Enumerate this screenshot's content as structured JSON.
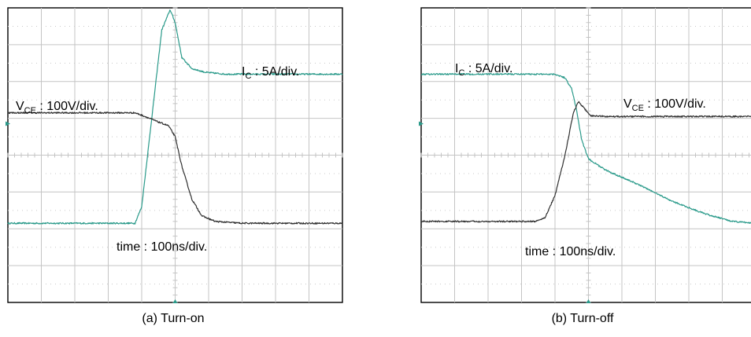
{
  "colors": {
    "ic_trace": "#2a9a8a",
    "vce_trace": "#303030",
    "grid_major": "#c4c4c4",
    "grid_minor": "#c8c8c8",
    "frame": "#000000"
  },
  "chart_data": [
    {
      "type": "line",
      "title": "(a) Turn-on",
      "grid": {
        "divisions_x": 10,
        "divisions_y": 8,
        "minor_per_div": 5
      },
      "x": {
        "range_div": [
          0,
          10
        ]
      },
      "y": {
        "range_div": [
          0,
          8
        ]
      },
      "annotations": {
        "ic": {
          "main": "I",
          "sub": "C",
          "rest": " : 5A/div."
        },
        "vce": {
          "main": "V",
          "sub": "CE",
          "rest": " : 100V/div."
        },
        "time": "time : 100ns/div."
      },
      "series": [
        {
          "key": "ic",
          "color_key": "ic_trace",
          "noise": 0.02,
          "points": [
            [
              0,
              2.15
            ],
            [
              3.8,
              2.15
            ],
            [
              4.0,
              2.6
            ],
            [
              4.3,
              5.0
            ],
            [
              4.6,
              7.4
            ],
            [
              4.85,
              7.95
            ],
            [
              5.0,
              7.6
            ],
            [
              5.2,
              6.65
            ],
            [
              5.5,
              6.35
            ],
            [
              5.9,
              6.25
            ],
            [
              6.5,
              6.2
            ],
            [
              10,
              6.2
            ]
          ]
        },
        {
          "key": "vce",
          "color_key": "vce_trace",
          "noise": 0.02,
          "points": [
            [
              0,
              5.15
            ],
            [
              3.8,
              5.15
            ],
            [
              4.1,
              5.05
            ],
            [
              4.5,
              4.9
            ],
            [
              4.8,
              4.8
            ],
            [
              5.0,
              4.5
            ],
            [
              5.2,
              3.7
            ],
            [
              5.5,
              2.8
            ],
            [
              5.8,
              2.35
            ],
            [
              6.2,
              2.2
            ],
            [
              7,
              2.15
            ],
            [
              10,
              2.15
            ]
          ]
        }
      ]
    },
    {
      "type": "line",
      "title": "(b) Turn-off",
      "grid": {
        "divisions_x": 10,
        "divisions_y": 8,
        "minor_per_div": 5
      },
      "x": {
        "range_div": [
          0,
          10
        ]
      },
      "y": {
        "range_div": [
          0,
          8
        ]
      },
      "annotations": {
        "ic": {
          "main": "I",
          "sub": "C",
          "rest": " : 5A/div."
        },
        "vce": {
          "main": "V",
          "sub": "CE",
          "rest": " : 100V/div."
        },
        "time": "time : 100ns/div."
      },
      "series": [
        {
          "key": "ic",
          "color_key": "ic_trace",
          "noise": 0.02,
          "points": [
            [
              0,
              6.2
            ],
            [
              4.0,
              6.2
            ],
            [
              4.3,
              6.1
            ],
            [
              4.5,
              5.8
            ],
            [
              4.65,
              5.2
            ],
            [
              4.8,
              4.4
            ],
            [
              5.0,
              3.9
            ],
            [
              5.5,
              3.6
            ],
            [
              6.5,
              3.2
            ],
            [
              7.5,
              2.75
            ],
            [
              8.5,
              2.4
            ],
            [
              9.3,
              2.2
            ],
            [
              10,
              2.15
            ]
          ]
        },
        {
          "key": "vce",
          "color_key": "vce_trace",
          "noise": 0.02,
          "points": [
            [
              0,
              2.2
            ],
            [
              3.4,
              2.2
            ],
            [
              3.7,
              2.3
            ],
            [
              4.0,
              2.9
            ],
            [
              4.3,
              4.0
            ],
            [
              4.55,
              5.15
            ],
            [
              4.7,
              5.45
            ],
            [
              4.85,
              5.3
            ],
            [
              5.05,
              5.07
            ],
            [
              5.6,
              5.05
            ],
            [
              10,
              5.05
            ]
          ]
        }
      ]
    }
  ]
}
